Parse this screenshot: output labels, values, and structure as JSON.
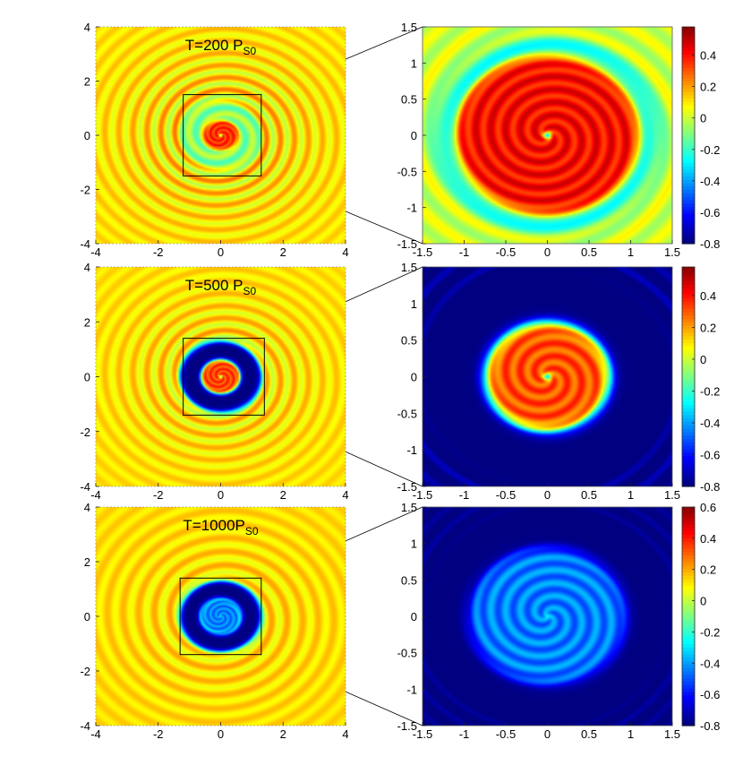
{
  "chart_data": [
    {
      "type": "heatmap",
      "name": "full-disk-t200",
      "title": "T=200 P",
      "title_sub": "S0",
      "xlim": [
        -4,
        4
      ],
      "ylim": [
        -4,
        4
      ],
      "xticks": [
        -4,
        -2,
        0,
        2,
        4
      ],
      "yticks": [
        -4,
        -2,
        0,
        2,
        4
      ],
      "xticklabels": [
        "-4",
        "-2",
        "0",
        "2",
        "4"
      ],
      "yticklabels": [
        "-4",
        "-2",
        "0",
        "2",
        "4"
      ],
      "zoom_box": [
        -1.2,
        1.3,
        -1.5,
        1.5
      ],
      "field": {
        "background": 0.1,
        "inner_blob": {
          "r": 0.55,
          "value": 0.35
        },
        "gap": {
          "r_in": 0.55,
          "r_out": 1.3,
          "value": -0.3,
          "strength": 0.5
        },
        "ring_amp": 0.18,
        "ring_wavelength": 0.45,
        "ring_decay": 0.4
      }
    },
    {
      "type": "heatmap",
      "name": "zoom-t200",
      "xlim": [
        -1.5,
        1.5
      ],
      "ylim": [
        -1.5,
        1.5
      ],
      "xticks": [
        -1.5,
        -1,
        -0.5,
        0,
        0.5,
        1,
        1.5
      ],
      "yticks": [
        -1.5,
        -1,
        -0.5,
        0,
        0.5,
        1,
        1.5
      ],
      "xticklabels": [
        "-1.5",
        "-1",
        "-0.5",
        "0",
        "0.5",
        "1",
        "1.5"
      ],
      "yticklabels": [
        "-1.5",
        "-1",
        "-0.5",
        "0",
        "0.5",
        "1",
        "1.5"
      ],
      "colorbar": {
        "min": -0.8,
        "max": 0.58,
        "ticks": [
          -0.8,
          -0.6,
          -0.4,
          -0.2,
          0,
          0.2,
          0.4
        ],
        "ticklabels": [
          "-0.8",
          "-0.6",
          "-0.4",
          "-0.2",
          "0",
          "0.2",
          "0.4"
        ]
      },
      "field": {
        "background": 0.0,
        "inner_blob": {
          "r": 1.1,
          "value": 0.4
        },
        "gap": {
          "r_in": 1.1,
          "r_out": 1.35,
          "value": -0.45,
          "strength": 0.7
        },
        "ring_amp": 0.1,
        "ring_wavelength": 0.3,
        "ring_decay": 0.8
      }
    },
    {
      "type": "heatmap",
      "name": "full-disk-t500",
      "title": "T=500 P",
      "title_sub": "S0",
      "xlim": [
        -4,
        4
      ],
      "ylim": [
        -4,
        4
      ],
      "xticks": [
        -4,
        -2,
        0,
        2,
        4
      ],
      "yticks": [
        -4,
        -2,
        0,
        2,
        4
      ],
      "xticklabels": [
        "-4",
        "-2",
        "0",
        "2",
        "4"
      ],
      "yticklabels": [
        "-4",
        "-2",
        "0",
        "2",
        "4"
      ],
      "zoom_box": [
        -1.2,
        1.4,
        -1.4,
        1.4
      ],
      "field": {
        "background": 0.1,
        "inner_blob": {
          "r": 0.6,
          "value": 0.32
        },
        "gap": {
          "r_in": 0.6,
          "r_out": 1.3,
          "value": -0.8,
          "strength": 1.0
        },
        "ring_amp": 0.14,
        "ring_wavelength": 0.45,
        "ring_decay": 0.4
      }
    },
    {
      "type": "heatmap",
      "name": "zoom-t500",
      "xlim": [
        -1.5,
        1.5
      ],
      "ylim": [
        -1.5,
        1.5
      ],
      "xticks": [
        -1.5,
        -1,
        -0.5,
        0,
        0.5,
        1,
        1.5
      ],
      "yticks": [
        -1.5,
        -1,
        -0.5,
        0,
        0.5,
        1,
        1.5
      ],
      "xticklabels": [
        "-1.5",
        "-1",
        "-0.5",
        "0",
        "0.5",
        "1",
        "1.5"
      ],
      "yticklabels": [
        "-1.5",
        "-1",
        "-0.5",
        "0",
        "0.5",
        "1",
        "1.5"
      ],
      "colorbar": {
        "min": -0.8,
        "max": 0.58,
        "ticks": [
          -0.8,
          -0.6,
          -0.4,
          -0.2,
          0,
          0.2,
          0.4
        ],
        "ticklabels": [
          "-0.8",
          "-0.6",
          "-0.4",
          "-0.2",
          "0",
          "0.2",
          "0.4"
        ]
      },
      "field": {
        "background": -0.8,
        "inner_blob": {
          "r": 0.75,
          "value": 0.3
        },
        "gap": {
          "r_in": 0.75,
          "r_out": 1.6,
          "value": -0.8,
          "strength": 1.0
        },
        "ring_amp": 0.1,
        "ring_wavelength": 0.25,
        "ring_decay": 0.8
      }
    },
    {
      "type": "heatmap",
      "name": "full-disk-t1000",
      "title": "T=1000P",
      "title_sub": "S0",
      "xlim": [
        -4,
        4
      ],
      "ylim": [
        -4,
        4
      ],
      "xticks": [
        -4,
        -2,
        0,
        2,
        4
      ],
      "yticks": [
        -4,
        -2,
        0,
        2,
        4
      ],
      "xticklabels": [
        "-4",
        "-2",
        "0",
        "2",
        "4"
      ],
      "yticklabels": [
        "-4",
        "-2",
        "0",
        "2",
        "4"
      ],
      "zoom_box": [
        -1.3,
        1.3,
        -1.4,
        1.4
      ],
      "field": {
        "background": 0.12,
        "inner_blob": {
          "r": 0.65,
          "value": -0.45
        },
        "gap": {
          "r_in": 0.65,
          "r_out": 1.3,
          "value": -0.8,
          "strength": 1.0
        },
        "ring_amp": 0.1,
        "ring_wavelength": 0.5,
        "ring_decay": 0.3
      }
    },
    {
      "type": "heatmap",
      "name": "zoom-t1000",
      "xlim": [
        -1.5,
        1.5
      ],
      "ylim": [
        -1.5,
        1.5
      ],
      "xticks": [
        -1.5,
        -1,
        -0.5,
        0,
        0.5,
        1,
        1.5
      ],
      "yticks": [
        -1.5,
        -1,
        -0.5,
        0,
        0.5,
        1,
        1.5
      ],
      "xticklabels": [
        "-1.5",
        "-1",
        "-0.5",
        "0",
        "0.5",
        "1",
        "1.5"
      ],
      "yticklabels": [
        "-1.5",
        "-1",
        "-0.5",
        "0",
        "0.5",
        "1",
        "1.5"
      ],
      "colorbar": {
        "min": -0.8,
        "max": 0.6,
        "ticks": [
          -0.8,
          -0.6,
          -0.4,
          -0.2,
          0,
          0.2,
          0.4,
          0.6
        ],
        "ticklabels": [
          "-0.8",
          "-0.6",
          "-0.4",
          "-0.2",
          "0",
          "0.2",
          "0.4",
          "0.6"
        ]
      },
      "field": {
        "background": -0.8,
        "inner_blob": {
          "r": 0.95,
          "value": -0.45
        },
        "gap": {
          "r_in": 0.95,
          "r_out": 1.55,
          "value": -0.8,
          "strength": 1.0
        },
        "ring_amp": 0.06,
        "ring_wavelength": 0.2,
        "ring_decay": 0.8
      }
    }
  ],
  "colormap": "jet"
}
